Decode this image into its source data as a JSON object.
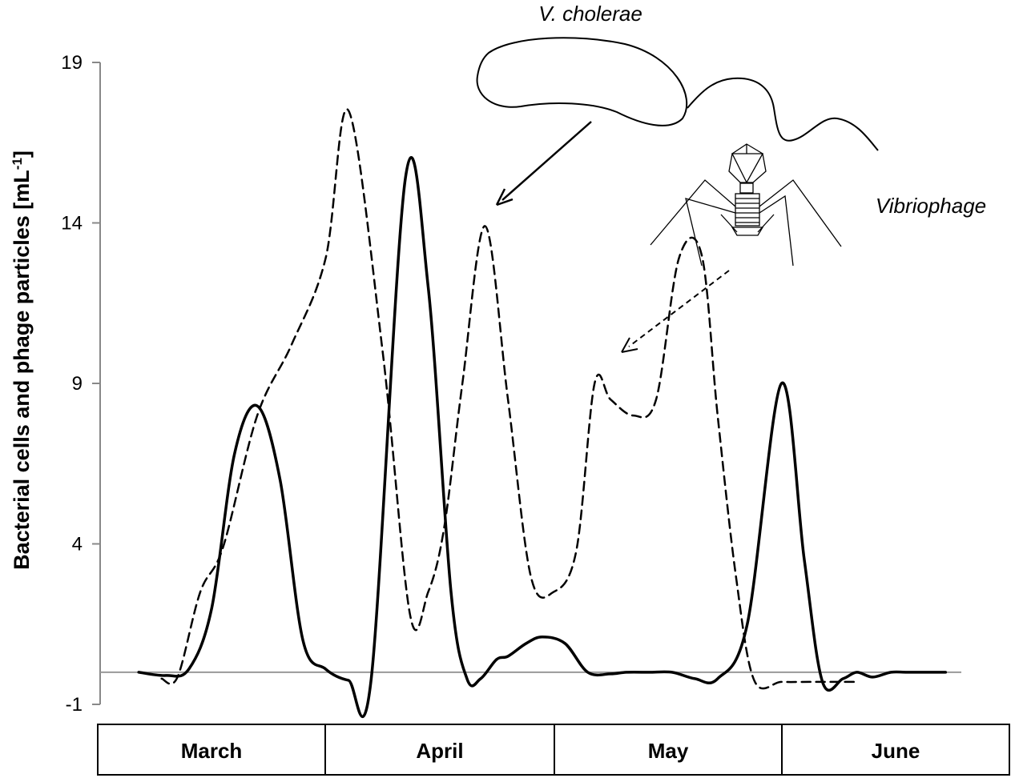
{
  "chart_data": {
    "type": "line",
    "ylabel": "Bacterial cells and phage particles [mL",
    "ylabel_sup": "-1",
    "ylabel_end": "]",
    "xlabel": "",
    "ylim": [
      -1,
      19
    ],
    "yticks": [
      -1,
      4,
      9,
      14,
      19
    ],
    "x_category_labels": [
      "March",
      "April",
      "May",
      "June"
    ],
    "xlim": [
      0,
      4
    ],
    "grid": false,
    "legend": "none",
    "baseline": 0,
    "series": [
      {
        "style": "solid",
        "color": "#000000",
        "x": [
          0.18,
          0.3,
          0.4,
          0.5,
          0.6,
          0.7,
          0.8,
          0.9,
          1.0,
          1.1,
          1.2,
          1.35,
          1.45,
          1.55,
          1.62,
          1.68,
          1.75,
          1.8,
          1.88,
          1.95,
          2.05,
          2.15,
          2.25,
          2.32,
          2.42,
          2.52,
          2.62,
          2.72,
          2.85,
          3.0,
          3.1,
          3.18,
          3.27,
          3.33,
          3.4,
          3.48,
          3.55,
          3.65,
          3.72
        ],
        "values": [
          0.0,
          -0.1,
          0.1,
          2.0,
          6.8,
          8.3,
          6.0,
          1.0,
          0.1,
          -0.25,
          -0.2,
          15.4,
          12.0,
          2.5,
          -0.2,
          -0.2,
          0.4,
          0.5,
          0.9,
          1.1,
          0.9,
          0.0,
          -0.05,
          0.0,
          0.0,
          0.0,
          -0.2,
          -0.2,
          1.5,
          9.0,
          3.5,
          -0.3,
          -0.2,
          0.0,
          -0.15,
          0.0,
          0.0,
          0.0,
          0.0
        ]
      },
      {
        "style": "dashed",
        "color": "#000000",
        "x": [
          0.28,
          0.35,
          0.45,
          0.55,
          0.7,
          0.85,
          1.0,
          1.1,
          1.25,
          1.37,
          1.45,
          1.52,
          1.6,
          1.7,
          1.8,
          1.9,
          2.0,
          2.1,
          2.18,
          2.25,
          2.35,
          2.45,
          2.55,
          2.65,
          2.72,
          2.8,
          2.88,
          3.0,
          3.12,
          3.22,
          3.32
        ],
        "values": [
          -0.2,
          -0.15,
          2.5,
          3.9,
          8.0,
          10.2,
          12.9,
          17.5,
          10.0,
          1.8,
          2.5,
          4.5,
          9.0,
          13.9,
          8.5,
          3.0,
          2.5,
          3.8,
          9.0,
          8.5,
          8.0,
          8.5,
          12.9,
          13.0,
          8.0,
          3.0,
          -0.25,
          -0.3,
          -0.3,
          -0.3,
          -0.3
        ]
      }
    ],
    "annotations": {
      "bacterium_label": "V. cholerae",
      "phage_label": "Vibriophage"
    }
  }
}
